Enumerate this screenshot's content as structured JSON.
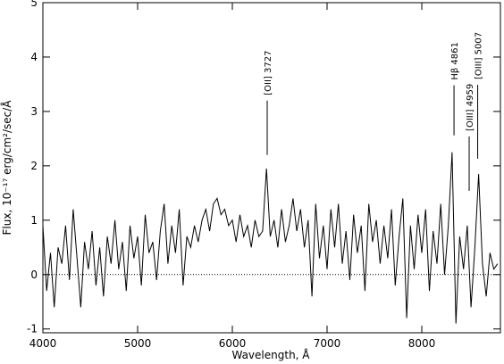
{
  "chart_data": {
    "type": "line",
    "xlabel": "Wavelength, Å",
    "ylabel": "Flux, 10⁻¹⁷ erg/cm²/sec/Å",
    "x": [
      4000,
      4040,
      4080,
      4120,
      4160,
      4200,
      4240,
      4280,
      4320,
      4360,
      4400,
      4440,
      4480,
      4520,
      4560,
      4600,
      4640,
      4680,
      4720,
      4760,
      4800,
      4840,
      4880,
      4920,
      4960,
      5000,
      5040,
      5080,
      5120,
      5160,
      5200,
      5240,
      5280,
      5320,
      5360,
      5400,
      5440,
      5480,
      5520,
      5560,
      5600,
      5640,
      5680,
      5720,
      5760,
      5800,
      5840,
      5880,
      5920,
      5960,
      6000,
      6040,
      6080,
      6120,
      6160,
      6200,
      6240,
      6280,
      6320,
      6360,
      6400,
      6440,
      6480,
      6520,
      6560,
      6600,
      6640,
      6680,
      6720,
      6760,
      6800,
      6840,
      6880,
      6920,
      6960,
      7000,
      7040,
      7080,
      7120,
      7160,
      7200,
      7240,
      7280,
      7320,
      7360,
      7400,
      7440,
      7480,
      7520,
      7560,
      7600,
      7640,
      7680,
      7720,
      7760,
      7800,
      7840,
      7880,
      7920,
      7960,
      8000,
      8040,
      8080,
      8120,
      8160,
      8200,
      8240,
      8280,
      8320,
      8360,
      8400,
      8440,
      8480,
      8520,
      8560,
      8600,
      8640,
      8680,
      8720,
      8760,
      8800
    ],
    "series": [
      {
        "color": "#000000",
        "values": [
          0.9,
          -0.3,
          0.4,
          -0.6,
          0.5,
          0.2,
          0.9,
          -0.1,
          1.2,
          0.3,
          -0.6,
          0.6,
          0.1,
          0.8,
          -0.2,
          0.5,
          -0.4,
          0.7,
          0.2,
          1.0,
          0.1,
          0.6,
          -0.3,
          0.9,
          0.3,
          0.7,
          -0.2,
          1.1,
          0.4,
          0.6,
          -0.1,
          0.8,
          1.3,
          0.2,
          0.9,
          0.4,
          1.2,
          -0.2,
          0.7,
          0.5,
          0.9,
          0.6,
          1.0,
          1.2,
          0.8,
          1.3,
          1.4,
          1.1,
          1.2,
          0.9,
          1.0,
          0.6,
          1.1,
          0.7,
          0.9,
          0.5,
          1.0,
          0.7,
          0.8,
          1.95,
          0.7,
          1.0,
          0.5,
          1.2,
          0.6,
          0.9,
          1.4,
          0.8,
          1.2,
          0.5,
          1.0,
          -0.4,
          1.3,
          0.3,
          0.9,
          0.1,
          1.2,
          0.5,
          1.3,
          0.2,
          0.8,
          -0.1,
          1.1,
          0.4,
          0.9,
          -0.3,
          1.3,
          0.6,
          1.0,
          0.2,
          0.9,
          0.3,
          1.2,
          -0.2,
          0.7,
          1.4,
          -0.8,
          0.9,
          0.1,
          1.1,
          0.4,
          1.2,
          -0.3,
          0.8,
          0.2,
          1.3,
          0.0,
          0.9,
          2.25,
          -0.9,
          0.7,
          0.1,
          0.9,
          -0.6,
          0.5,
          1.85,
          0.2,
          -0.4,
          0.4,
          0.1,
          0.2
        ]
      }
    ],
    "xlim": [
      4000,
      8830
    ],
    "ylim": [
      -1.07,
      5
    ],
    "xticks": [
      4000,
      5000,
      6000,
      7000,
      8000
    ],
    "yticks": [
      -1,
      0,
      1,
      2,
      3,
      4,
      5
    ],
    "reference_y": 0,
    "annotations": [
      {
        "text": "[OII] 3727",
        "x": 6368,
        "y": [
          2.2,
          3.2
        ]
      },
      {
        "text": "Hβ 4861",
        "x": 8340,
        "y": [
          2.56,
          3.48
        ]
      },
      {
        "text": "[OIII] 4959",
        "x": 8500,
        "y": [
          1.54,
          2.54
        ]
      },
      {
        "text": "[OIII] 5007",
        "x": 8590,
        "y": [
          2.13,
          3.49
        ]
      }
    ]
  }
}
